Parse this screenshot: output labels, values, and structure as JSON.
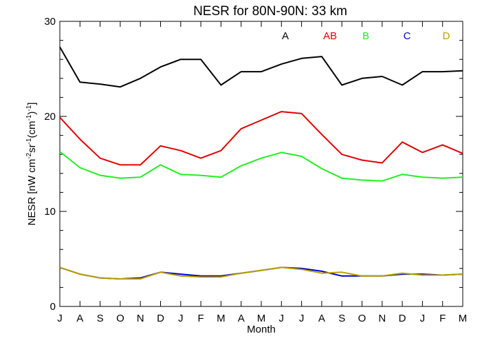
{
  "chart_data": {
    "type": "line",
    "title": "NESR for 80N-90N: 33 km",
    "xlabel": "Month",
    "ylabel": {
      "base": "NESR [nW cm",
      "sup1": "-2",
      "mid1": "sr",
      "sup2": "-1",
      "mid2": "(cm",
      "sup3": "-1",
      "mid3": ")",
      "sup4": "-1",
      "end": "]"
    },
    "categories": [
      "J",
      "A",
      "S",
      "O",
      "N",
      "D",
      "J",
      "F",
      "M",
      "A",
      "M",
      "J",
      "J",
      "A",
      "S",
      "O",
      "N",
      "D",
      "J",
      "F",
      "M"
    ],
    "ylim": [
      0,
      30
    ],
    "yticks": [
      0,
      10,
      20,
      30
    ],
    "grid": false,
    "legend_position": "top-right",
    "series": [
      {
        "name": "A",
        "color": "#000000",
        "values": [
          27.3,
          23.6,
          23.4,
          23.1,
          24.0,
          25.2,
          26.0,
          26.0,
          23.3,
          24.7,
          24.7,
          25.5,
          26.1,
          26.3,
          23.3,
          24.0,
          24.2,
          23.3,
          24.7,
          24.7,
          24.8
        ]
      },
      {
        "name": "AB",
        "color": "#e00000",
        "values": [
          19.9,
          17.6,
          15.6,
          14.9,
          14.9,
          16.9,
          16.4,
          15.6,
          16.4,
          18.7,
          19.6,
          20.5,
          20.3,
          18.1,
          16.0,
          15.4,
          15.1,
          17.3,
          16.2,
          17.0,
          16.1
        ]
      },
      {
        "name": "B",
        "color": "#22ee22",
        "values": [
          16.3,
          14.6,
          13.8,
          13.5,
          13.6,
          14.9,
          13.9,
          13.8,
          13.6,
          14.8,
          15.6,
          16.2,
          15.8,
          14.5,
          13.5,
          13.3,
          13.2,
          13.9,
          13.6,
          13.5,
          13.6
        ]
      },
      {
        "name": "C",
        "color": "#0000cc",
        "values": [
          4.1,
          3.4,
          3.0,
          2.9,
          3.0,
          3.6,
          3.4,
          3.2,
          3.2,
          3.5,
          3.8,
          4.1,
          4.0,
          3.7,
          3.2,
          3.2,
          3.2,
          3.4,
          3.4,
          3.3,
          3.4
        ]
      },
      {
        "name": "D",
        "color": "#b8a000",
        "values": [
          4.1,
          3.4,
          3.0,
          2.9,
          2.9,
          3.6,
          3.2,
          3.1,
          3.1,
          3.5,
          3.8,
          4.1,
          3.9,
          3.5,
          3.6,
          3.2,
          3.2,
          3.5,
          3.3,
          3.3,
          3.4
        ]
      }
    ]
  }
}
